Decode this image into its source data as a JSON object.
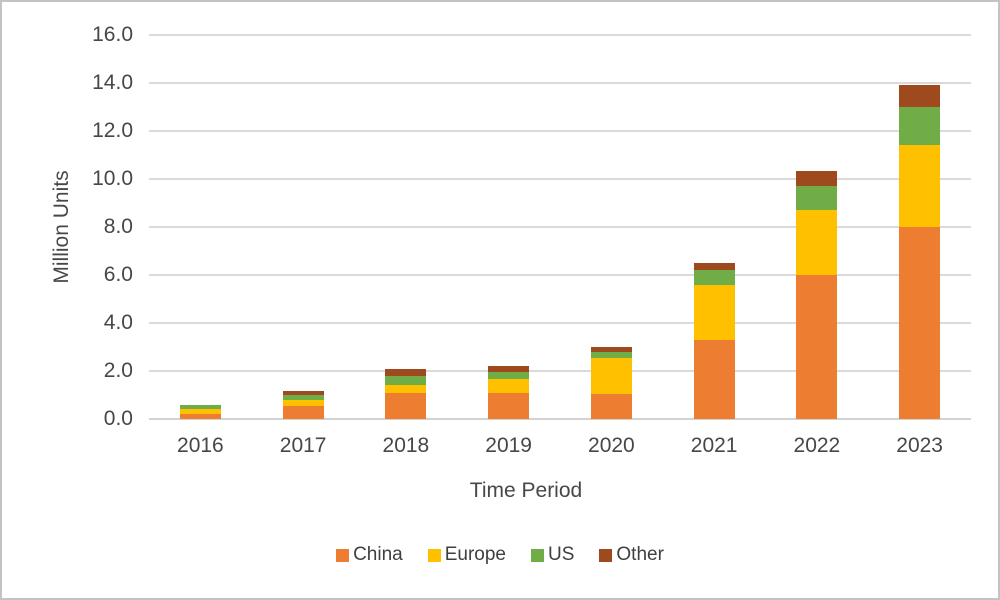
{
  "chart_data": {
    "type": "bar",
    "stacked": true,
    "title": "",
    "xlabel": "Time Period",
    "ylabel": "Million Units",
    "categories": [
      "2016",
      "2017",
      "2018",
      "2019",
      "2020",
      "2021",
      "2022",
      "2023"
    ],
    "series": [
      {
        "name": "China",
        "color": "#ED7D31",
        "values": [
          0.2,
          0.55,
          1.1,
          1.1,
          1.05,
          3.3,
          6.0,
          8.0
        ]
      },
      {
        "name": "Europe",
        "color": "#FFC000",
        "values": [
          0.2,
          0.25,
          0.3,
          0.55,
          1.5,
          2.3,
          2.7,
          3.4
        ]
      },
      {
        "name": "US",
        "color": "#70AD47",
        "values": [
          0.2,
          0.2,
          0.4,
          0.3,
          0.25,
          0.6,
          1.0,
          1.6
        ]
      },
      {
        "name": "Other",
        "color": "#9E4A1E",
        "values": [
          0.0,
          0.15,
          0.3,
          0.25,
          0.2,
          0.3,
          0.65,
          0.9
        ]
      }
    ],
    "totals": [
      0.6,
      1.15,
      2.1,
      2.2,
      3.0,
      6.5,
      10.35,
      13.9
    ],
    "ylim": [
      0,
      16
    ],
    "y_tick_step": 2,
    "y_tick_labels": [
      "0.0",
      "2.0",
      "4.0",
      "6.0",
      "8.0",
      "10.0",
      "12.0",
      "14.0",
      "16.0"
    ],
    "grid": true,
    "legend_position": "bottom",
    "colors": {
      "gridline": "#dadada",
      "axis_line": "#d2d2d2",
      "text": "#474747",
      "frame_border": "#c3c3c3"
    }
  }
}
